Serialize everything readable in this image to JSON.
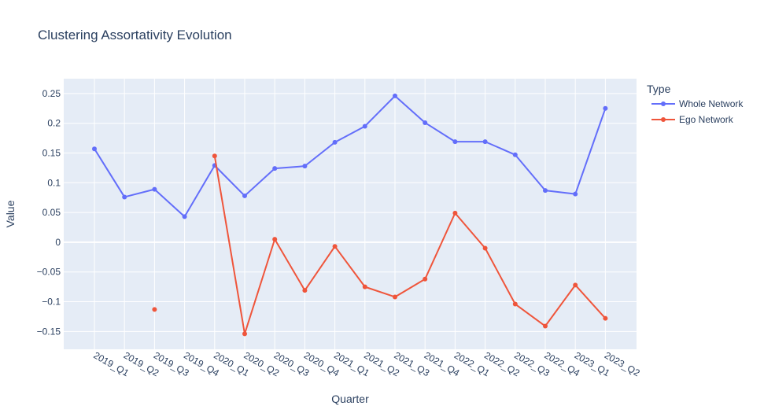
{
  "chart_data": {
    "type": "line",
    "title": "Clustering Assortativity Evolution",
    "xlabel": "Quarter",
    "ylabel": "Value",
    "categories": [
      "2019_Q1",
      "2019_Q2",
      "2019_Q3",
      "2019_Q4",
      "2020_Q1",
      "2020_Q2",
      "2020_Q3",
      "2020_Q4",
      "2021_Q1",
      "2021_Q2",
      "2021_Q3",
      "2021_Q4",
      "2022_Q1",
      "2022_Q2",
      "2022_Q3",
      "2022_Q4",
      "2023_Q1",
      "2023_Q2"
    ],
    "ylim": [
      -0.18,
      0.275
    ],
    "yticks": [
      -0.15,
      -0.1,
      -0.05,
      0,
      0.05,
      0.1,
      0.15,
      0.2,
      0.25
    ],
    "ytick_labels": [
      "−0.15",
      "−0.1",
      "−0.05",
      "0",
      "0.05",
      "0.1",
      "0.15",
      "0.2",
      "0.25"
    ],
    "grid": true,
    "legend_title": "Type",
    "legend_position": "right",
    "series": [
      {
        "name": "Whole Network",
        "color": "#636efa",
        "values": [
          0.157,
          0.076,
          0.089,
          0.043,
          0.129,
          0.078,
          0.124,
          0.128,
          0.168,
          0.195,
          0.246,
          0.201,
          0.169,
          0.169,
          0.147,
          0.087,
          0.081,
          0.225
        ]
      },
      {
        "name": "Ego Network",
        "color": "#ef553b",
        "values": [
          null,
          null,
          -0.113,
          null,
          0.145,
          -0.154,
          0.005,
          -0.081,
          -0.007,
          -0.075,
          -0.092,
          -0.062,
          0.049,
          -0.01,
          -0.104,
          -0.141,
          -0.072,
          -0.128
        ]
      }
    ]
  }
}
